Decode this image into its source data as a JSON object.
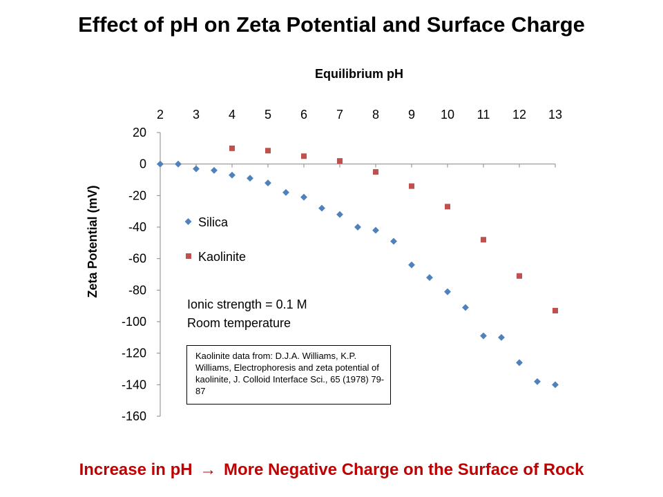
{
  "slide": {
    "title": "Effect of pH on Zeta Potential and Surface Charge",
    "footer_left": "Increase in pH",
    "footer_arrow": "→",
    "footer_right": "More Negative Charge on the Surface of Rock",
    "footer_color": "#c00000"
  },
  "chart_data": {
    "type": "scatter",
    "title": "",
    "xlabel": "Equilibrium pH",
    "ylabel": "Zeta Potential (mV)",
    "xlim": [
      2,
      13
    ],
    "ylim": [
      -160,
      20
    ],
    "x_axis_position": "top",
    "xticks": [
      "2",
      "3",
      "4",
      "5",
      "6",
      "7",
      "8",
      "9",
      "10",
      "11",
      "12",
      "13"
    ],
    "yticks": [
      "20",
      "0",
      "-20",
      "-40",
      "-60",
      "-80",
      "-100",
      "-120",
      "-140",
      "-160"
    ],
    "grid": false,
    "legend": "left",
    "series": [
      {
        "name": "Silica",
        "marker": "diamond",
        "color": "#4f81bd",
        "x": [
          2,
          2.5,
          3,
          3.5,
          4,
          4.5,
          5,
          5.5,
          6,
          6.5,
          7,
          7.5,
          8,
          8.5,
          9,
          9.5,
          10,
          10.5,
          11,
          11.5,
          12,
          12.5,
          13
        ],
        "y": [
          0,
          0,
          -3,
          -4,
          -7,
          -9,
          -12,
          -18,
          -21,
          -28,
          -32,
          -40,
          -42,
          -49,
          -64,
          -72,
          -81,
          -91,
          -109,
          -110,
          -126,
          -138,
          -140
        ]
      },
      {
        "name": "Kaolinite",
        "marker": "square",
        "color": "#c0504d",
        "x": [
          4,
          5,
          6,
          7,
          8,
          9,
          10,
          11,
          12,
          13
        ],
        "y": [
          10,
          8.5,
          5,
          2,
          -5,
          -14,
          -27,
          -48,
          -71,
          -93
        ]
      }
    ],
    "annotations": [
      "Ionic strength = 0.1 M",
      "Room temperature"
    ],
    "reference": "Kaolinite data from: D.J.A. Williams, K.P. Williams, Electrophoresis and zeta potential of kaolinite, J. Colloid Interface Sci., 65 (1978) 79-87"
  }
}
